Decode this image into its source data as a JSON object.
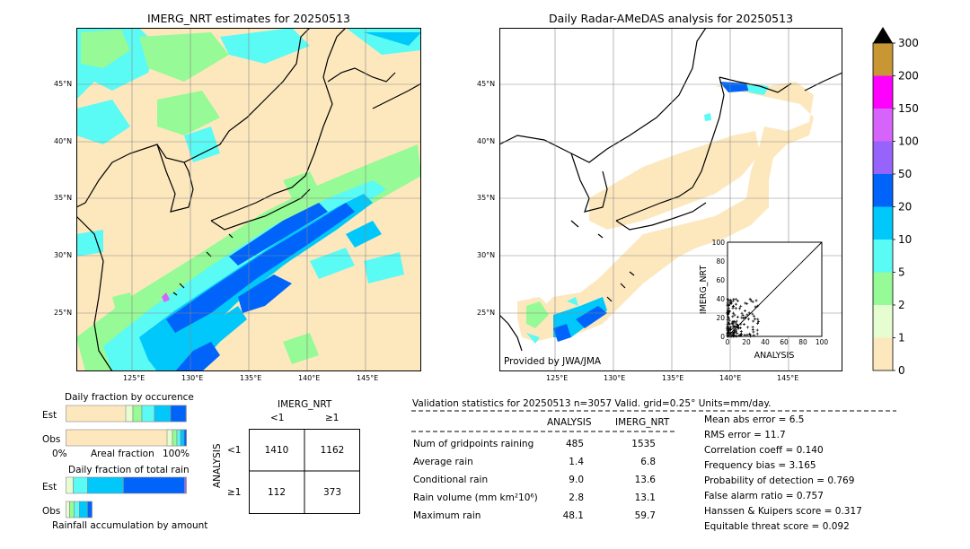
{
  "map_left": {
    "title": "IMERG_NRT estimates for 20250513",
    "lon_ticks": [
      "125°E",
      "130°E",
      "135°E",
      "140°E",
      "145°E"
    ],
    "lat_ticks": [
      "45°N",
      "40°N",
      "35°N",
      "30°N",
      "25°N"
    ]
  },
  "map_right": {
    "title": "Daily Radar-AMeDAS analysis for 20250513",
    "credit": "Provided by JWA/JMA",
    "lon_ticks": [
      "125°E",
      "130°E",
      "135°E",
      "140°E",
      "145°E"
    ],
    "lat_ticks": [
      "45°N",
      "40°N",
      "35°N",
      "30°N",
      "25°N"
    ]
  },
  "colorbar": {
    "levels": [
      "0",
      "1",
      "2",
      "5",
      "10",
      "20",
      "50",
      "100",
      "150",
      "200",
      "300"
    ],
    "colors": [
      "#fde8be",
      "#e6fdd2",
      "#96fa96",
      "#5afaf5",
      "#00c8fa",
      "#0064fa",
      "#9664fa",
      "#d764fa",
      "#ff00ff",
      "#c89632"
    ],
    "over_color": "#000000"
  },
  "scatter": {
    "xlabel": "ANALYSIS",
    "ylabel": "IMERG_NRT",
    "ticks": [
      "0",
      "20",
      "40",
      "60",
      "80",
      "100"
    ]
  },
  "occurrence": {
    "title": "Daily fraction by occurence",
    "row_labels": [
      "Est",
      "Obs"
    ],
    "axis_left": "0%",
    "axis_mid": "Areal fraction",
    "axis_right": "100%"
  },
  "total_rain": {
    "title": "Daily fraction of total rain",
    "row_labels": [
      "Est",
      "Obs"
    ],
    "footer": "Rainfall accumulation by amount"
  },
  "contingency": {
    "col_title": "IMERG_NRT",
    "col_labels": [
      "<1",
      "≥1"
    ],
    "row_title": "ANALYSIS",
    "row_labels": [
      "<1",
      "≥1"
    ],
    "cells": [
      "1410",
      "1162",
      "112",
      "373"
    ]
  },
  "validation": {
    "header": "Validation statistics for 20250513  n=3057 Valid. grid=0.25° Units=mm/day.",
    "col_analysis": "ANALYSIS",
    "col_imerg": "IMERG_NRT",
    "rows": [
      {
        "label": "Num of gridpoints raining",
        "analysis": "485",
        "imerg": "1535"
      },
      {
        "label": "Average rain",
        "analysis": "1.4",
        "imerg": "6.8"
      },
      {
        "label": "Conditional rain",
        "analysis": "9.0",
        "imerg": "13.6"
      },
      {
        "label": "Rain volume (mm km²10⁶)",
        "analysis": "2.8",
        "imerg": "13.1"
      },
      {
        "label": "Maximum rain",
        "analysis": "48.1",
        "imerg": "59.7"
      }
    ],
    "scores": [
      "Mean abs error =    6.5",
      "RMS error =   11.7",
      "Correlation coeff =  0.140",
      "Frequency bias =  3.165",
      "Probability of detection =  0.769",
      "False alarm ratio =  0.757",
      "Hanssen & Kuipers score =  0.317",
      "Equitable threat score =  0.092"
    ]
  }
}
